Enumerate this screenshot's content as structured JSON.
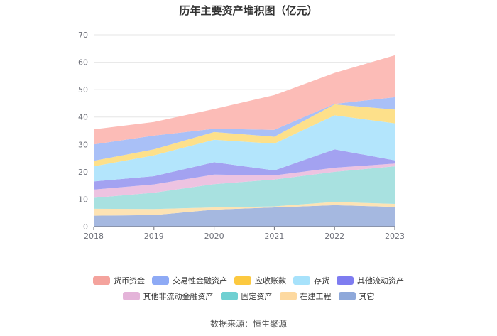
{
  "chart_data": {
    "type": "area",
    "stacked": true,
    "title": "历年主要资产堆积图（亿元）",
    "x": [
      "2018",
      "2019",
      "2020",
      "2021",
      "2022",
      "2023"
    ],
    "ylim": [
      0,
      70
    ],
    "yticks": [
      0,
      10,
      20,
      30,
      40,
      50,
      60,
      70
    ],
    "grid": true,
    "legend_position": "bottom",
    "series": [
      {
        "name": "其它",
        "color": "#a5b8e0",
        "values": [
          4.0,
          4.2,
          6.2,
          7.0,
          7.8,
          7.2
        ]
      },
      {
        "name": "在建工程",
        "color": "#fde3b4",
        "values": [
          2.5,
          2.2,
          0.8,
          0.4,
          1.2,
          1.1
        ]
      },
      {
        "name": "固定资产",
        "color": "#a8e1e0",
        "values": [
          4.0,
          6.0,
          8.5,
          9.8,
          11.0,
          13.7
        ]
      },
      {
        "name": "其他非流动金融资产",
        "color": "#edc3e1",
        "values": [
          3.0,
          3.0,
          3.5,
          1.5,
          1.5,
          1.0
        ]
      },
      {
        "name": "其他流动资产",
        "color": "#a3a2f1",
        "values": [
          3.0,
          3.0,
          4.5,
          1.8,
          6.7,
          1.2
        ]
      },
      {
        "name": "存货",
        "color": "#b3e5fc",
        "values": [
          5.5,
          7.6,
          8.2,
          9.8,
          12.4,
          13.5
        ]
      },
      {
        "name": "应收账款",
        "color": "#fde08a",
        "values": [
          2.0,
          2.2,
          2.8,
          2.5,
          4.0,
          5.0
        ]
      },
      {
        "name": "交易性金融资产",
        "color": "#a9c0f7",
        "values": [
          6.0,
          5.0,
          1.2,
          2.5,
          0.2,
          4.5
        ]
      },
      {
        "name": "货币资金",
        "color": "#fcbcb7",
        "values": [
          5.5,
          5.0,
          7.2,
          12.7,
          11.3,
          15.3
        ]
      }
    ]
  },
  "legend": {
    "row1": [
      {
        "name": "货币资金",
        "color": "#f4a39d"
      },
      {
        "name": "交易性金融资产",
        "color": "#8eaaf5"
      },
      {
        "name": "应收账款",
        "color": "#fcc940"
      },
      {
        "name": "存货",
        "color": "#a7e2fb"
      },
      {
        "name": "其他流动资产",
        "color": "#7e7cf0"
      }
    ],
    "row2": [
      {
        "name": "其他非流动金融资产",
        "color": "#e4b4d9"
      },
      {
        "name": "固定资产",
        "color": "#6fd0d2"
      },
      {
        "name": "在建工程",
        "color": "#fdd9a0"
      },
      {
        "name": "其它",
        "color": "#8ea8da"
      }
    ]
  },
  "source": "数据来源：恒生聚源"
}
